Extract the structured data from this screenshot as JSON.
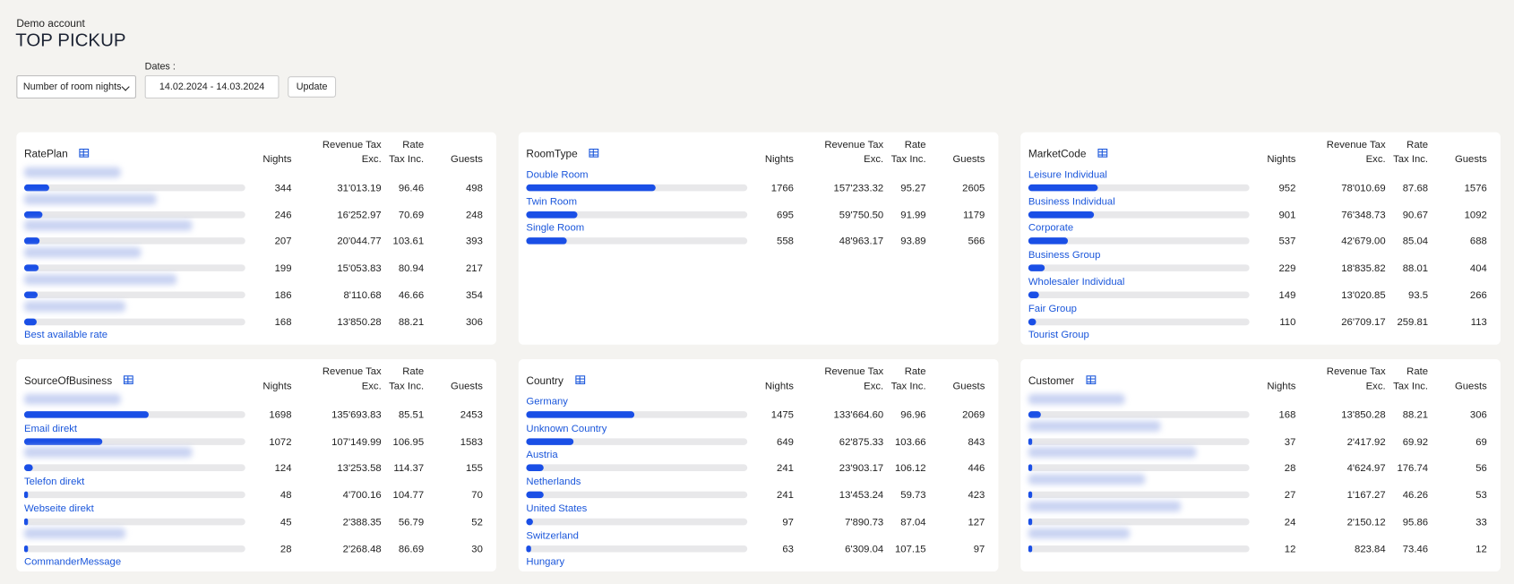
{
  "header": {
    "account": "Demo account",
    "title": "TOP PICKUP"
  },
  "controls": {
    "metric": "Number of room nights",
    "dates_label": "Dates :",
    "dates": "14.02.2024 - 14.03.2024",
    "button": "Update"
  },
  "panels": [
    {
      "title": "RatePlan",
      "columns": [
        "Nights",
        "Revenue Tax Exc.",
        "Rate Tax Inc.",
        "Guests"
      ],
      "rows": [
        {
          "label": null,
          "nights": 344,
          "revenue": "31'013.19",
          "rate": "96.46",
          "guests": "498"
        },
        {
          "label": null,
          "nights": 246,
          "revenue": "16'252.97",
          "rate": "70.69",
          "guests": "248"
        },
        {
          "label": null,
          "nights": 207,
          "revenue": "20'044.77",
          "rate": "103.61",
          "guests": "393"
        },
        {
          "label": null,
          "nights": 199,
          "revenue": "15'053.83",
          "rate": "80.94",
          "guests": "217"
        },
        {
          "label": null,
          "nights": 186,
          "revenue": "8'110.68",
          "rate": "46.66",
          "guests": "354"
        },
        {
          "label": null,
          "nights": 168,
          "revenue": "13'850.28",
          "rate": "88.21",
          "guests": "306"
        },
        {
          "label": "Best available rate"
        }
      ]
    },
    {
      "title": "RoomType",
      "columns": [
        "Nights",
        "Revenue Tax Exc.",
        "Rate Tax Inc.",
        "Guests"
      ],
      "rows": [
        {
          "label": "Double Room",
          "nights": 1766,
          "revenue": "157'233.32",
          "rate": "95.27",
          "guests": "2605"
        },
        {
          "label": "Twin Room",
          "nights": 695,
          "revenue": "59'750.50",
          "rate": "91.99",
          "guests": "1179"
        },
        {
          "label": "Single Room",
          "nights": 558,
          "revenue": "48'963.17",
          "rate": "93.89",
          "guests": "566"
        }
      ]
    },
    {
      "title": "MarketCode",
      "columns": [
        "Nights",
        "Revenue Tax Exc.",
        "Rate Tax Inc.",
        "Guests"
      ],
      "rows": [
        {
          "label": "Leisure Individual",
          "nights": 952,
          "revenue": "78'010.69",
          "rate": "87.68",
          "guests": "1576"
        },
        {
          "label": "Business Individual",
          "nights": 901,
          "revenue": "76'348.73",
          "rate": "90.67",
          "guests": "1092"
        },
        {
          "label": "Corporate",
          "nights": 537,
          "revenue": "42'679.00",
          "rate": "85.04",
          "guests": "688"
        },
        {
          "label": "Business Group",
          "nights": 229,
          "revenue": "18'835.82",
          "rate": "88.01",
          "guests": "404"
        },
        {
          "label": "Wholesaler Individual",
          "nights": 149,
          "revenue": "13'020.85",
          "rate": "93.5",
          "guests": "266"
        },
        {
          "label": "Fair Group",
          "nights": 110,
          "revenue": "26'709.17",
          "rate": "259.81",
          "guests": "113"
        },
        {
          "label": "Tourist Group"
        }
      ]
    },
    {
      "title": "SourceOfBusiness",
      "columns": [
        "Nights",
        "Revenue Tax Exc.",
        "Rate Tax Inc.",
        "Guests"
      ],
      "rows": [
        {
          "label": null,
          "nights": 1698,
          "revenue": "135'693.83",
          "rate": "85.51",
          "guests": "2453"
        },
        {
          "label": "Email direkt",
          "nights": 1072,
          "revenue": "107'149.99",
          "rate": "106.95",
          "guests": "1583"
        },
        {
          "label": null,
          "nights": 124,
          "revenue": "13'253.58",
          "rate": "114.37",
          "guests": "155"
        },
        {
          "label": "Telefon direkt",
          "nights": 48,
          "revenue": "4'700.16",
          "rate": "104.77",
          "guests": "70"
        },
        {
          "label": "Webseite direkt",
          "nights": 45,
          "revenue": "2'388.35",
          "rate": "56.79",
          "guests": "52"
        },
        {
          "label": null,
          "nights": 28,
          "revenue": "2'268.48",
          "rate": "86.69",
          "guests": "30"
        },
        {
          "label": "CommanderMessage"
        }
      ]
    },
    {
      "title": "Country",
      "columns": [
        "Nights",
        "Revenue Tax Exc.",
        "Rate Tax Inc.",
        "Guests"
      ],
      "rows": [
        {
          "label": "Germany",
          "nights": 1475,
          "revenue": "133'664.60",
          "rate": "96.96",
          "guests": "2069"
        },
        {
          "label": "Unknown Country",
          "nights": 649,
          "revenue": "62'875.33",
          "rate": "103.66",
          "guests": "843"
        },
        {
          "label": "Austria",
          "nights": 241,
          "revenue": "23'903.17",
          "rate": "106.12",
          "guests": "446"
        },
        {
          "label": "Netherlands",
          "nights": 241,
          "revenue": "13'453.24",
          "rate": "59.73",
          "guests": "423"
        },
        {
          "label": "United States",
          "nights": 97,
          "revenue": "7'890.73",
          "rate": "87.04",
          "guests": "127"
        },
        {
          "label": "Switzerland",
          "nights": 63,
          "revenue": "6'309.04",
          "rate": "107.15",
          "guests": "97"
        },
        {
          "label": "Hungary"
        }
      ]
    },
    {
      "title": "Customer",
      "columns": [
        "Nights",
        "Revenue Tax Exc.",
        "Rate Tax Inc.",
        "Guests"
      ],
      "rows": [
        {
          "label": null,
          "nights": 168,
          "revenue": "13'850.28",
          "rate": "88.21",
          "guests": "306"
        },
        {
          "label": null,
          "nights": 37,
          "revenue": "2'417.92",
          "rate": "69.92",
          "guests": "69"
        },
        {
          "label": null,
          "nights": 28,
          "revenue": "4'624.97",
          "rate": "176.74",
          "guests": "56"
        },
        {
          "label": null,
          "nights": 27,
          "revenue": "1'167.27",
          "rate": "46.26",
          "guests": "53"
        },
        {
          "label": null,
          "nights": 24,
          "revenue": "2'150.12",
          "rate": "95.86",
          "guests": "33"
        },
        {
          "label": null,
          "nights": 12,
          "revenue": "823.84",
          "rate": "73.46",
          "guests": "12"
        }
      ]
    }
  ]
}
